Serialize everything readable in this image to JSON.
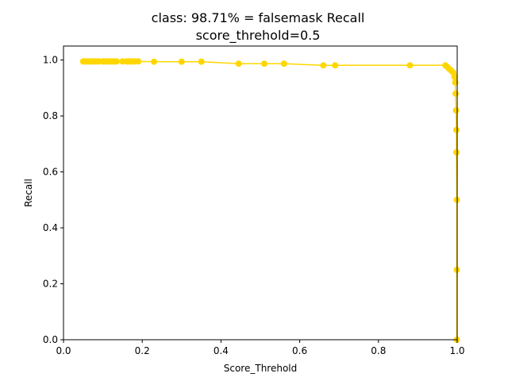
{
  "chart_data": {
    "type": "line",
    "title": "class: 98.71% = falsemask Recall",
    "subtitle": "score_threhold=0.5",
    "xlabel": "Score_Threhold",
    "ylabel": "Recall",
    "xlim": [
      0.0,
      1.0
    ],
    "ylim": [
      0.0,
      1.05
    ],
    "xticks": [
      "0.0",
      "0.2",
      "0.4",
      "0.6",
      "0.8",
      "1.0"
    ],
    "yticks": [
      "0.0",
      "0.2",
      "0.4",
      "0.6",
      "0.8",
      "1.0"
    ],
    "grid": false,
    "color": "#FFD700",
    "series": [
      {
        "x": [
          0.05,
          0.055,
          0.06,
          0.065,
          0.07,
          0.075,
          0.08,
          0.085,
          0.09,
          0.1,
          0.105,
          0.11,
          0.115,
          0.12,
          0.125,
          0.13,
          0.135,
          0.15,
          0.16,
          0.165,
          0.17,
          0.175,
          0.18,
          0.19,
          0.23,
          0.3,
          0.35,
          0.445,
          0.51,
          0.56,
          0.66,
          0.69,
          0.88,
          0.97,
          0.975,
          0.98,
          0.985,
          0.99,
          0.993,
          0.995,
          0.996,
          0.997,
          0.998,
          0.998,
          0.999,
          0.999,
          0.999
        ],
        "y": [
          0.995,
          0.995,
          0.995,
          0.995,
          0.995,
          0.995,
          0.995,
          0.995,
          0.995,
          0.995,
          0.995,
          0.995,
          0.995,
          0.995,
          0.995,
          0.995,
          0.995,
          0.995,
          0.995,
          0.995,
          0.995,
          0.995,
          0.995,
          0.995,
          0.994,
          0.994,
          0.994,
          0.987,
          0.987,
          0.987,
          0.981,
          0.981,
          0.981,
          0.981,
          0.975,
          0.968,
          0.962,
          0.955,
          0.94,
          0.92,
          0.88,
          0.82,
          0.75,
          0.67,
          0.5,
          0.25,
          0.0
        ]
      }
    ]
  }
}
